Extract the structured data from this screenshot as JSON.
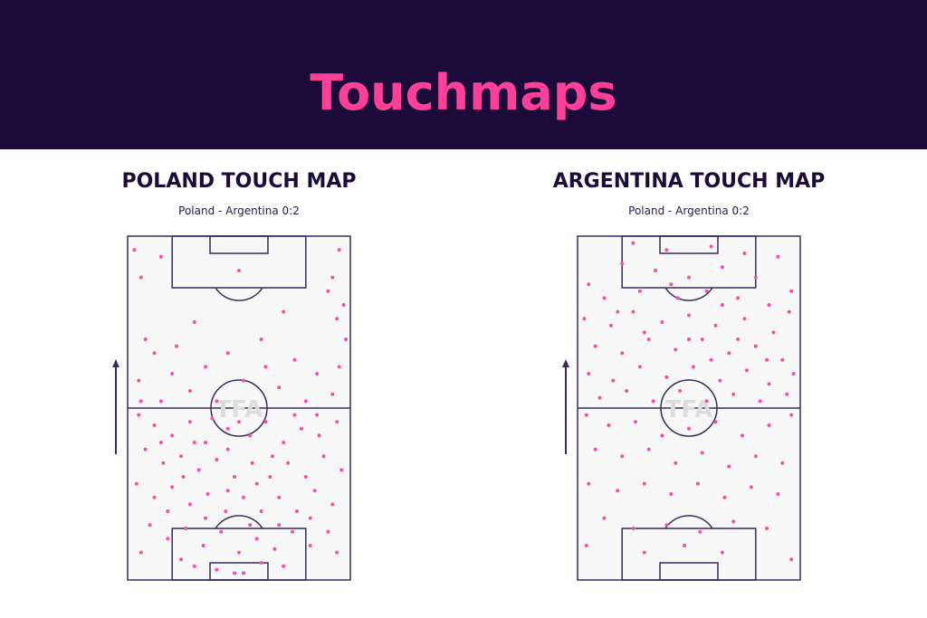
{
  "header": {
    "title": "Touchmaps"
  },
  "chart_data": [
    {
      "type": "scatter",
      "title": "POLAND TOUCH MAP",
      "subtitle": "Poland - Argentina 0:2",
      "watermark": "TFA",
      "color": "#f84fa9",
      "xlim": [
        0,
        100
      ],
      "ylim": [
        0,
        100
      ],
      "x": [
        3,
        15,
        6,
        95,
        92,
        97,
        90,
        94,
        50,
        70,
        30,
        8,
        12,
        5,
        20,
        35,
        28,
        45,
        60,
        75,
        85,
        95,
        92,
        80,
        68,
        52,
        40,
        15,
        6,
        98,
        62,
        22,
        5,
        12,
        20,
        28,
        35,
        45,
        55,
        62,
        70,
        78,
        86,
        94,
        8,
        16,
        24,
        32,
        40,
        48,
        56,
        64,
        72,
        80,
        88,
        96,
        4,
        12,
        20,
        28,
        36,
        44,
        52,
        60,
        68,
        76,
        84,
        92,
        10,
        18,
        26,
        34,
        42,
        50,
        58,
        66,
        74,
        82,
        90,
        24,
        30,
        40,
        48,
        52,
        60,
        70,
        35,
        55,
        65,
        45,
        25,
        15,
        85,
        75,
        38,
        58,
        30,
        50,
        18,
        82,
        6,
        94,
        45,
        68
      ],
      "values": [
        96,
        94,
        88,
        96,
        88,
        80,
        84,
        76,
        90,
        78,
        75,
        70,
        66,
        58,
        60,
        62,
        55,
        66,
        70,
        64,
        60,
        62,
        54,
        52,
        56,
        58,
        52,
        52,
        52,
        70,
        62,
        68,
        48,
        45,
        42,
        46,
        40,
        44,
        42,
        46,
        40,
        44,
        42,
        46,
        38,
        34,
        36,
        32,
        35,
        30,
        34,
        30,
        34,
        30,
        36,
        32,
        28,
        24,
        27,
        22,
        25,
        20,
        24,
        20,
        24,
        20,
        26,
        22,
        16,
        12,
        15,
        10,
        14,
        8,
        12,
        9,
        14,
        10,
        14,
        6,
        4,
        3,
        2,
        2,
        5,
        4,
        18,
        16,
        36,
        38,
        30,
        40,
        48,
        48,
        47,
        28,
        40,
        46,
        20,
        18,
        8,
        8,
        26,
        16
      ]
    },
    {
      "type": "scatter",
      "title": "ARGENTINA TOUCH MAP",
      "subtitle": "Poland - Argentina 0:2",
      "watermark": "TFA",
      "color": "#f84fa9",
      "xlim": [
        0,
        100
      ],
      "ylim": [
        0,
        100
      ],
      "x": [
        25,
        40,
        60,
        75,
        20,
        35,
        50,
        65,
        80,
        90,
        5,
        12,
        28,
        45,
        58,
        72,
        86,
        96,
        3,
        15,
        25,
        38,
        50,
        62,
        75,
        88,
        95,
        8,
        20,
        32,
        44,
        56,
        68,
        80,
        92,
        5,
        16,
        28,
        40,
        52,
        64,
        76,
        86,
        97,
        10,
        22,
        34,
        46,
        58,
        70,
        82,
        94,
        30,
        60,
        72,
        42,
        85,
        18,
        50,
        65,
        4,
        14,
        26,
        38,
        50,
        62,
        74,
        86,
        96,
        8,
        20,
        32,
        44,
        56,
        68,
        80,
        92,
        5,
        18,
        30,
        42,
        54,
        66,
        78,
        90,
        12,
        25,
        40,
        55,
        70,
        85,
        4,
        30,
        48,
        65,
        96
      ],
      "values": [
        98,
        96,
        97,
        95,
        92,
        90,
        88,
        91,
        88,
        94,
        86,
        82,
        84,
        82,
        84,
        82,
        80,
        84,
        76,
        74,
        78,
        75,
        77,
        74,
        76,
        72,
        78,
        68,
        66,
        70,
        67,
        70,
        66,
        68,
        64,
        60,
        58,
        62,
        59,
        62,
        58,
        61,
        57,
        60,
        53,
        55,
        52,
        55,
        52,
        54,
        52,
        54,
        72,
        64,
        70,
        86,
        64,
        78,
        70,
        80,
        48,
        45,
        46,
        42,
        44,
        46,
        42,
        45,
        48,
        38,
        36,
        38,
        34,
        37,
        33,
        36,
        34,
        28,
        26,
        28,
        25,
        28,
        24,
        27,
        25,
        18,
        15,
        16,
        14,
        17,
        15,
        10,
        8,
        10,
        8,
        6
      ]
    }
  ]
}
